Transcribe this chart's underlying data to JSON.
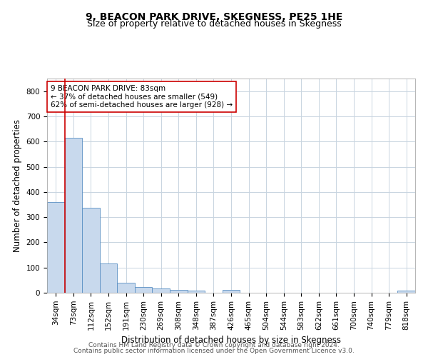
{
  "title": "9, BEACON PARK DRIVE, SKEGNESS, PE25 1HE",
  "subtitle": "Size of property relative to detached houses in Skegness",
  "xlabel": "Distribution of detached houses by size in Skegness",
  "ylabel": "Number of detached properties",
  "categories": [
    "34sqm",
    "73sqm",
    "112sqm",
    "152sqm",
    "191sqm",
    "230sqm",
    "269sqm",
    "308sqm",
    "348sqm",
    "387sqm",
    "426sqm",
    "465sqm",
    "504sqm",
    "544sqm",
    "583sqm",
    "622sqm",
    "661sqm",
    "700sqm",
    "740sqm",
    "779sqm",
    "818sqm"
  ],
  "values": [
    360,
    615,
    338,
    115,
    40,
    22,
    18,
    12,
    8,
    0,
    10,
    0,
    0,
    0,
    0,
    0,
    0,
    0,
    0,
    0,
    8
  ],
  "bar_color": "#c8d9ed",
  "bar_edge_color": "#5a8fc3",
  "vline_color": "#cc0000",
  "annotation_text": "9 BEACON PARK DRIVE: 83sqm\n← 37% of detached houses are smaller (549)\n62% of semi-detached houses are larger (928) →",
  "annotation_box_color": "#ffffff",
  "annotation_box_edge_color": "#cc0000",
  "ylim": [
    0,
    850
  ],
  "yticks": [
    0,
    100,
    200,
    300,
    400,
    500,
    600,
    700,
    800
  ],
  "footer1": "Contains HM Land Registry data © Crown copyright and database right 2024.",
  "footer2": "Contains public sector information licensed under the Open Government Licence v3.0.",
  "title_fontsize": 10,
  "subtitle_fontsize": 9,
  "axis_label_fontsize": 8.5,
  "tick_fontsize": 7.5,
  "annotation_fontsize": 7.5,
  "footer_fontsize": 6.5,
  "background_color": "#ffffff",
  "grid_color": "#c8d4e0"
}
